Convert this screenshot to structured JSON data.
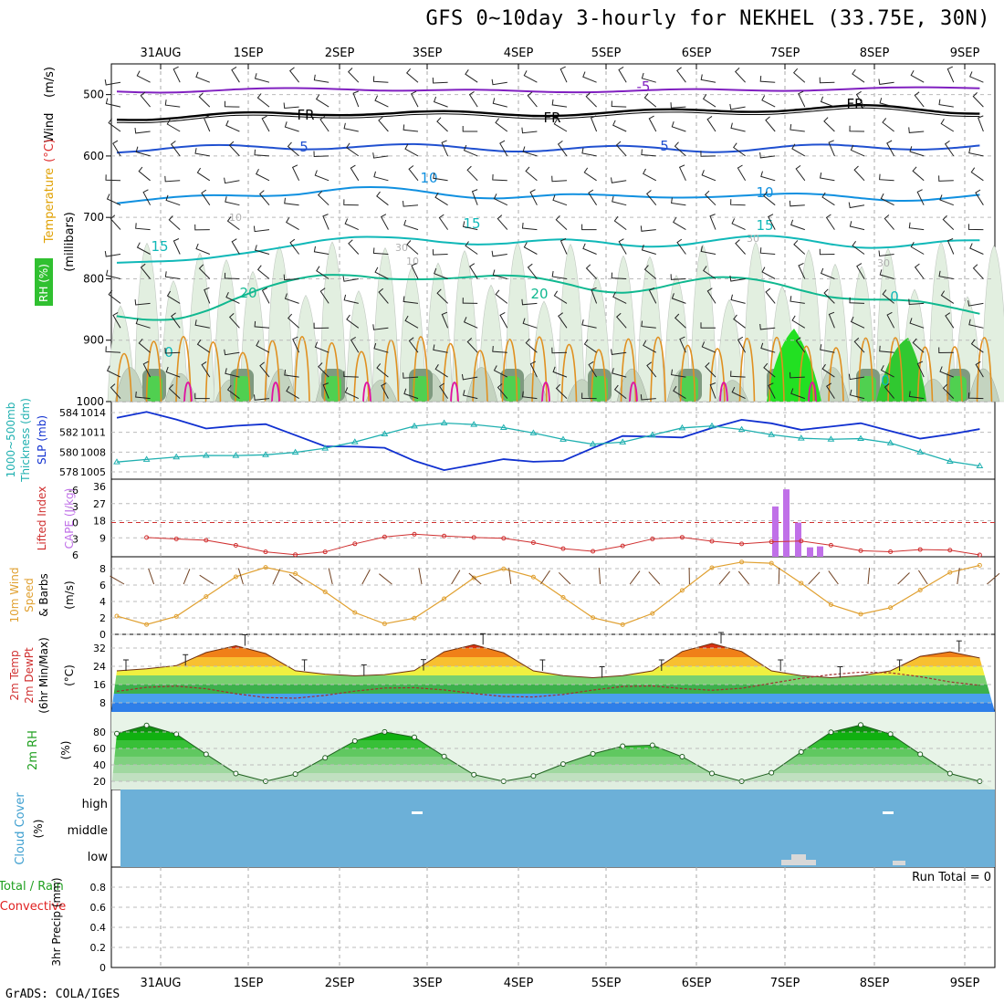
{
  "title": "GFS 0~10day 3-hourly for NEKHEL (33.75E, 30N)",
  "credit": "GrADS: COLA/IGES",
  "date_labels": [
    "31AUG",
    "1SEP",
    "2SEP",
    "3SEP",
    "4SEP",
    "5SEP",
    "6SEP",
    "7SEP",
    "8SEP",
    "9SEP"
  ],
  "panel_labels": {
    "upper_air": [
      {
        "text": "Wind",
        "color": "#000000"
      },
      {
        "text": "(m/s)",
        "color": "#000000"
      },
      {
        "text": "Temperature",
        "color": "#e0a000"
      },
      {
        "text": "(°C)",
        "color": "#e03030"
      },
      {
        "text": "RH (%)",
        "color": "#208020"
      },
      {
        "text": "(millibars)",
        "color": "#000000"
      }
    ],
    "thickness": [
      "1000~500mb",
      "Thickness (dm)",
      "SLP (mb)"
    ],
    "cape": [
      "CAPE (J/kg)",
      "Lifted Index"
    ],
    "wind10m": [
      "10m Wind",
      "Speed",
      "& Barbs",
      "(m/s)"
    ],
    "temp2m": [
      "2m Temp",
      "2m DewPt",
      "(6hr Min/Max)",
      "(°C)"
    ],
    "rh2m": [
      "2m RH",
      "(%)"
    ],
    "cloud": [
      "Cloud Cover",
      "(%)"
    ],
    "precip": [
      "Total / Rain",
      "Convective",
      "3hr Precip (mm)"
    ]
  },
  "colors": {
    "temp_5_neg": "#8020c0",
    "freezing": "#000000",
    "temp_5": "#2050d0",
    "temp_10": "#1090e0",
    "temp_15": "#10b8b8",
    "temp_20": "#10b890",
    "rh_light": "#e2efe0",
    "rh_mid": "#c4d4c0",
    "rh_dark": "#7f9a80",
    "rh_green": "#50d050",
    "orange_contour": "#e09020",
    "magenta_contour": "#e010a0",
    "slp": "#1030d0",
    "thickness": "#20b0b0",
    "lifted_index": "#d03030",
    "cape": "#c070e8",
    "wind10m": "#e0a030",
    "cloud_bg": "#6cb0d8",
    "precip_axis": "#000000"
  },
  "contour_labels": [
    "-5",
    "FR",
    "FR",
    "FR",
    "5",
    "5",
    "10",
    "10",
    "15",
    "15",
    "15",
    "20",
    "20",
    "10",
    "30",
    "10",
    "30",
    "30",
    "0",
    "0",
    "0"
  ],
  "chart_data": [
    {
      "type": "line",
      "panel": "upper_air",
      "title": "",
      "xlabel": "",
      "ylabel": "(millibars)",
      "y_ticks": [
        500,
        600,
        700,
        800,
        900,
        1000
      ],
      "ylim": [
        1000,
        450
      ],
      "y_log": false,
      "series": [
        {
          "name": "-5",
          "values": [
            495,
            492,
            490,
            493,
            495,
            494,
            493,
            492,
            491,
            488
          ]
        },
        {
          "name": "FR",
          "values": [
            538,
            532,
            530,
            530,
            532,
            530,
            526,
            524,
            520,
            528
          ]
        },
        {
          "name": "5",
          "values": [
            590,
            585,
            584,
            586,
            588,
            588,
            590,
            585,
            588,
            582
          ]
        },
        {
          "name": "10",
          "values": [
            676,
            660,
            655,
            660,
            664,
            670,
            660,
            668,
            666,
            668
          ]
        },
        {
          "name": "15",
          "values": [
            780,
            748,
            742,
            730,
            745,
            742,
            738,
            738,
            742,
            745
          ]
        },
        {
          "name": "20",
          "values": [
            870,
            818,
            800,
            790,
            805,
            815,
            805,
            810,
            830,
            860
          ]
        }
      ],
      "grid": true,
      "legend": "none"
    },
    {
      "type": "line",
      "panel": "thickness_slp",
      "title": "",
      "x": [
        "31AUG",
        "1SEP",
        "2SEP",
        "3SEP",
        "4SEP",
        "5SEP",
        "6SEP",
        "7SEP",
        "8SEP",
        "9SEP"
      ],
      "y_left_ticks": [
        578,
        580,
        582,
        584
      ],
      "y_right_ticks": [
        1005,
        1008,
        1011,
        1014
      ],
      "series": [
        {
          "name": "SLP (mb)",
          "values": [
            1013.2,
            1011.8,
            1009.4,
            1006.2,
            1006.0,
            1009.1,
            1011.5,
            1012.5,
            1011.3,
            1010.6
          ]
        },
        {
          "name": "1000~500mb Thickness (dm)",
          "values": [
            579.0,
            579.6,
            581.0,
            582.6,
            582.3,
            581.0,
            582.4,
            581.5,
            581.8,
            578.2
          ]
        }
      ],
      "grid": true,
      "legend": "none"
    },
    {
      "type": "bar",
      "panel": "cape_li",
      "title": "",
      "x": [
        "31AUG",
        "1SEP",
        "2SEP",
        "3SEP",
        "4SEP",
        "5SEP",
        "6SEP",
        "7SEP",
        "8SEP",
        "9SEP"
      ],
      "y_left_ticks": [
        6,
        3,
        0,
        -3,
        -6
      ],
      "y_right_ticks": [
        9,
        18,
        27,
        36
      ],
      "series": [
        {
          "name": "Lifted Index",
          "values": [
            2.1,
            5.3,
            5.2,
            1.3,
            4.0,
            4.8,
            2.7,
            4.0,
            4.7,
            6.0
          ]
        },
        {
          "name": "CAPE (J/kg)",
          "values": [
            0,
            0,
            0,
            0,
            0,
            0,
            0,
            34,
            0,
            0
          ]
        }
      ],
      "cape_bars": [
        25.5,
        34.5,
        17,
        4,
        4.5
      ],
      "grid": true,
      "legend": "none"
    },
    {
      "type": "line",
      "panel": "wind10m",
      "title": "",
      "x": [
        "31AUG",
        "1SEP",
        "2SEP",
        "3SEP",
        "4SEP",
        "5SEP",
        "6SEP",
        "7SEP",
        "8SEP",
        "9SEP"
      ],
      "y_ticks": [
        0,
        2,
        4,
        6,
        8
      ],
      "ylim": [
        0,
        9
      ],
      "values": [
        1.2,
        1.0,
        1.8,
        0.8,
        1.0,
        1.0,
        2.0,
        2.8,
        2.4,
        1.4
      ],
      "grid": true,
      "legend": "none"
    },
    {
      "type": "area",
      "panel": "temp2m",
      "title": "",
      "x": [
        "31AUG",
        "1SEP",
        "2SEP",
        "3SEP",
        "4SEP",
        "5SEP",
        "6SEP",
        "7SEP",
        "8SEP",
        "9SEP"
      ],
      "y_ticks": [
        8,
        16,
        24,
        32
      ],
      "ylim": [
        4,
        38
      ],
      "series": [
        {
          "name": "2m Temp",
          "values": [
            25,
            21,
            23,
            22,
            22,
            22,
            22,
            22,
            22,
            22
          ]
        },
        {
          "name": "2m DewPt",
          "values": [
            13,
            12,
            13,
            12,
            13,
            13,
            13,
            20,
            19,
            18
          ]
        }
      ],
      "temp_max_values": [
        33,
        33,
        33,
        34,
        33,
        34,
        34,
        34,
        32,
        30
      ],
      "grid": true,
      "legend": "none"
    },
    {
      "type": "area",
      "panel": "rh2m",
      "title": "",
      "x": [
        "31AUG",
        "1SEP",
        "2SEP",
        "3SEP",
        "4SEP",
        "5SEP",
        "6SEP",
        "7SEP",
        "8SEP",
        "9SEP"
      ],
      "y_ticks": [
        20,
        40,
        60,
        80
      ],
      "ylim": [
        10,
        100
      ],
      "values": [
        40,
        30,
        40,
        28,
        32,
        32,
        40,
        78,
        70,
        65
      ],
      "rh_max_values": [
        88,
        84,
        76,
        84,
        66,
        58,
        84,
        92,
        88,
        84
      ],
      "grid": true,
      "legend": "none"
    },
    {
      "type": "heatmap",
      "panel": "cloud_cover",
      "title": "",
      "y_categories": [
        "high",
        "middle",
        "low"
      ],
      "high_marks": [
        "3SEP",
        "8SEP"
      ],
      "low_marks": [
        "7SEP",
        "8SEP"
      ],
      "grid": false,
      "legend": "none"
    },
    {
      "type": "bar",
      "panel": "precip",
      "title": "",
      "y_ticks": [
        0,
        0.2,
        0.4,
        0.6,
        0.8
      ],
      "ylim": [
        0,
        1
      ],
      "values": [
        0,
        0,
        0,
        0,
        0,
        0,
        0,
        0,
        0,
        0
      ],
      "run_total_label": "Run Total = 0",
      "grid": true,
      "legend": "none"
    }
  ]
}
